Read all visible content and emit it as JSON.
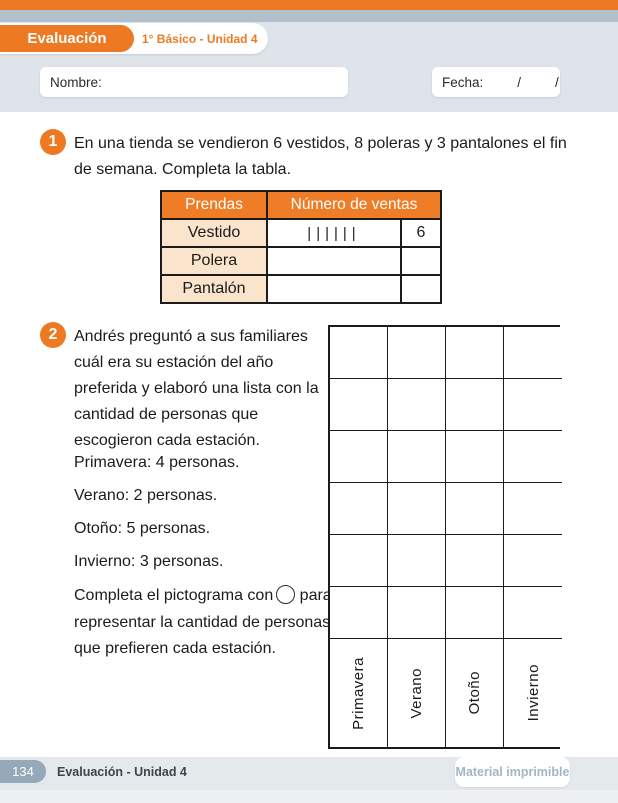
{
  "header": {
    "badge": "Evaluación",
    "subtitle": "1° Básico - Unidad 4",
    "nombre_label": "Nombre:",
    "fecha_label": "Fecha:",
    "slash": "/"
  },
  "q1": {
    "number": "1",
    "text": "En una tienda se vendieron 6 vestidos, 8 poleras y 3 pantalones el fin de semana. Completa la tabla.",
    "table": {
      "col1_header": "Prendas",
      "col2_header": "Número de ventas",
      "rows": [
        {
          "name": "Vestido",
          "tally": "||||||",
          "count": "6"
        },
        {
          "name": "Polera",
          "tally": "",
          "count": ""
        },
        {
          "name": "Pantalón",
          "tally": "",
          "count": ""
        }
      ]
    }
  },
  "q2": {
    "number": "2",
    "text": "Andrés preguntó a sus familiares cuál era su estación del año preferida y elaboró una lista con la cantidad de personas que escogieron cada estación.",
    "list": [
      "Primavera: 4 personas.",
      "Verano: 2 personas.",
      "Otoño: 5 personas.",
      "Invierno: 3 personas."
    ],
    "instruction_before": "Completa el pictograma con",
    "instruction_after": "para representar la cantidad de personas que prefieren cada estación.",
    "pictogram": {
      "data_rows": 6,
      "columns": [
        "Primavera",
        "Verano",
        "Otoño",
        "Invierno"
      ]
    }
  },
  "footer": {
    "page_number": "134",
    "label": "Evaluación - Unidad 4",
    "material_label": "Material imprimible"
  },
  "colors": {
    "accent_orange": "#ED7A23",
    "table_header_orange": "#EF7D28",
    "peach": "#FAE4CC",
    "top_blue_gray": "#B3C0CB",
    "header_gray": "#DEE4E9",
    "footer_gray": "#E4E9EC",
    "page_badge_blue": "#94A9B9"
  }
}
